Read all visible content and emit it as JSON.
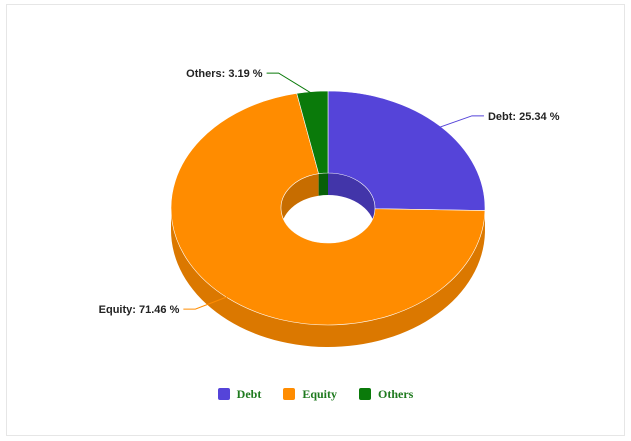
{
  "chart_data": {
    "type": "pie",
    "variant": "3d-donut",
    "title": "",
    "slices": [
      {
        "name": "Debt",
        "value": 25.34,
        "label": "Debt: 25.34 %",
        "color": "#5544d9"
      },
      {
        "name": "Equity",
        "value": 71.46,
        "label": "Equity: 71.46 %",
        "color": "#ff8c00"
      },
      {
        "name": "Others",
        "value": 3.19,
        "label": "Others: 3.19 %",
        "color": "#0a7a0a"
      }
    ],
    "legend": {
      "position": "bottom-center",
      "items": [
        {
          "label": "Debt",
          "color": "#5544d9"
        },
        {
          "label": "Equity",
          "color": "#ff8c00"
        },
        {
          "label": "Others",
          "color": "#0a7a0a"
        }
      ],
      "text_color": "#1e7a1e"
    }
  }
}
